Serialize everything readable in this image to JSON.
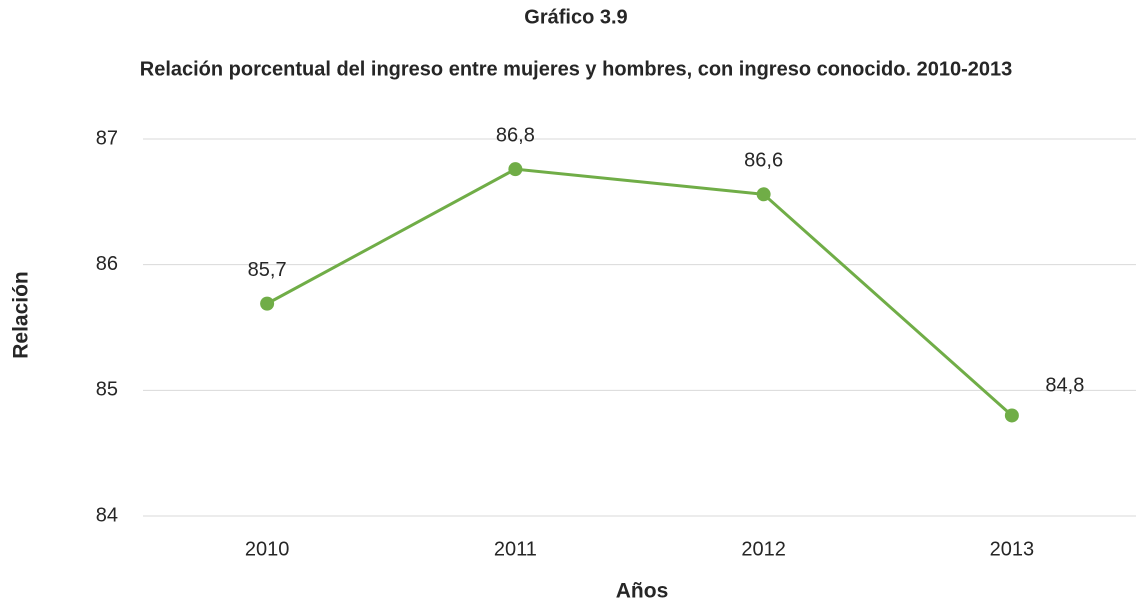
{
  "chart_data": {
    "type": "line",
    "title": "Gráfico 3.9",
    "subtitle": "Relación porcentual del ingreso entre mujeres y hombres, con ingreso conocido. 2010-2013",
    "x_label": "Años",
    "y_label": "Relación",
    "categories": [
      "2010",
      "2011",
      "2012",
      "2013"
    ],
    "series": [
      {
        "name": "Relación",
        "color": "#70ad47",
        "values": [
          85.69,
          86.76,
          86.56,
          84.8
        ],
        "value_labels": [
          "85,7",
          "86,8",
          "86,6",
          "84,8"
        ]
      }
    ],
    "ylim": [
      84,
      87
    ],
    "yticks": [
      84,
      85,
      86,
      87
    ],
    "grid": true
  }
}
